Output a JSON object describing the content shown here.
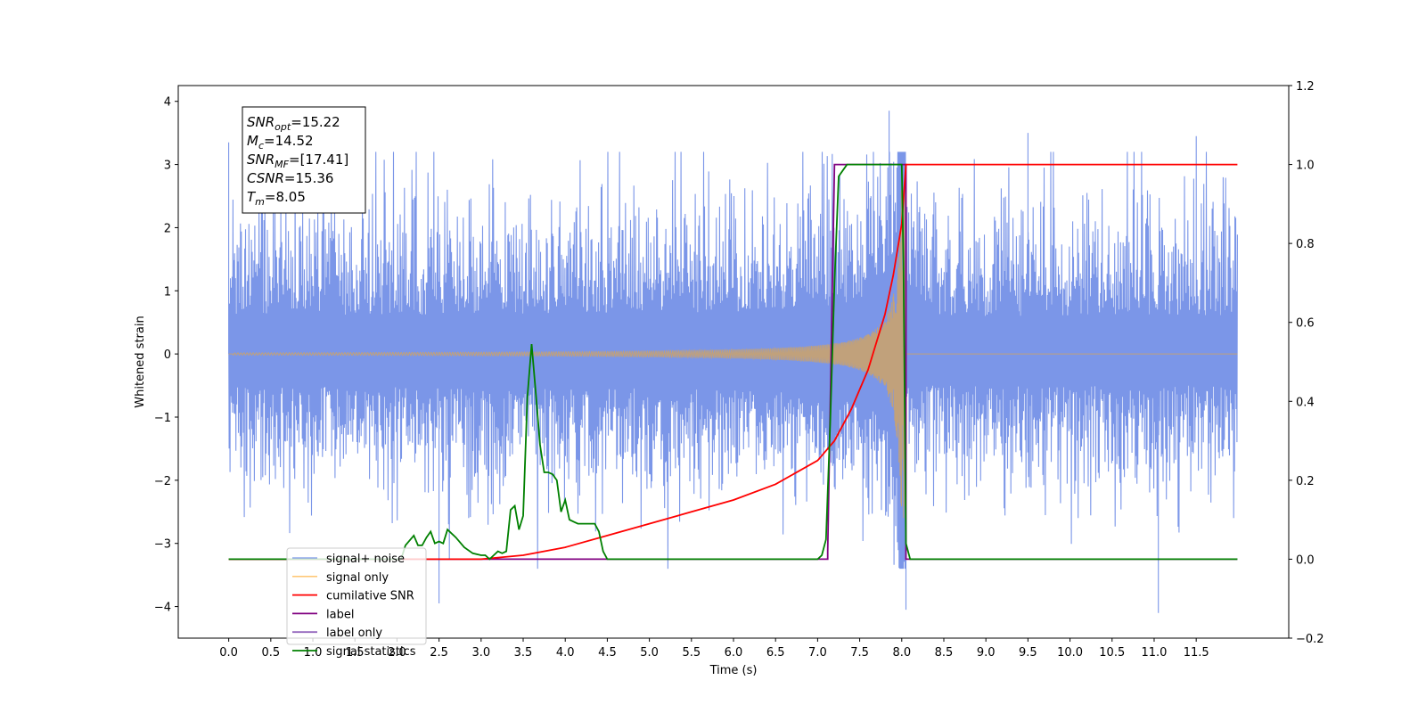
{
  "chart_data": {
    "type": "line",
    "xlabel": "Time (s)",
    "ylabel_left": "Whitened strain",
    "xlim": [
      -0.6,
      12.6
    ],
    "ylim_left": [
      -4.5,
      4.25
    ],
    "ylim_right": [
      -0.2,
      1.2
    ],
    "x_ticks": [
      0.0,
      0.5,
      1.0,
      1.5,
      2.0,
      2.5,
      3.0,
      3.5,
      4.0,
      4.5,
      5.0,
      5.5,
      6.0,
      6.5,
      7.0,
      7.5,
      8.0,
      8.5,
      9.0,
      9.5,
      10.0,
      10.5,
      11.0,
      11.5
    ],
    "x_tick_labels": [
      "0.0",
      "0.5",
      "1.0",
      "1.5",
      "2.0",
      "2.5",
      "3.0",
      "3.5",
      "4.0",
      "4.5",
      "5.0",
      "5.5",
      "6.0",
      "6.5",
      "7.0",
      "7.5",
      "8.0",
      "8.5",
      "9.0",
      "9.5",
      "10.0",
      "10.5",
      "11.0",
      "11.5"
    ],
    "y_left_ticks": [
      -4,
      -3,
      -2,
      -1,
      0,
      1,
      2,
      3,
      4
    ],
    "y_left_tick_labels": [
      "−4",
      "−3",
      "−2",
      "−1",
      "0",
      "1",
      "2",
      "3",
      "4"
    ],
    "y_right_ticks": [
      -0.2,
      0.0,
      0.2,
      0.4,
      0.6,
      0.8,
      1.0,
      1.2
    ],
    "y_right_tick_labels": [
      "−0.2",
      "0.0",
      "0.2",
      "0.4",
      "0.6",
      "0.8",
      "1.0",
      "1.2"
    ],
    "legend_position": "lower-left",
    "info_box": [
      {
        "main": "SNR",
        "sub": "opt",
        "value": "=15.22"
      },
      {
        "main": "M",
        "sub": "c",
        "value": "=14.52"
      },
      {
        "main": "SNR",
        "sub": "MF",
        "value": "=[17.41]"
      },
      {
        "main": "CSNR",
        "sub": "",
        "value": "=15.36"
      },
      {
        "main": "T",
        "sub": "m",
        "value": "=8.05"
      }
    ],
    "series": [
      {
        "name": "signal+ noise",
        "axis": "left",
        "color": "#7b96e8",
        "x_range": [
          0.0,
          11.99
        ],
        "envelope_hi": 2.0,
        "envelope_lo": -1.6,
        "peaks": [
          [
            0.0,
            3.35
          ],
          [
            2.5,
            -3.95
          ],
          [
            7.85,
            3.85
          ],
          [
            8.05,
            -4.05
          ],
          [
            11.05,
            -4.1
          ],
          [
            11.5,
            3.45
          ],
          [
            9.5,
            3.5
          ]
        ]
      },
      {
        "name": "signal only",
        "axis": "left",
        "color": "#c9a26f",
        "x_range": [
          0.0,
          11.99
        ],
        "merger_time": 8.05
      },
      {
        "name": "cumilative SNR",
        "axis": "right",
        "color": "#ff0000",
        "x": [
          0.0,
          3.0,
          3.5,
          4.0,
          4.5,
          5.0,
          5.5,
          6.0,
          6.5,
          7.0,
          7.2,
          7.4,
          7.6,
          7.8,
          7.9,
          8.0,
          8.05,
          11.99
        ],
        "y": [
          0.0,
          0.0,
          0.01,
          0.03,
          0.06,
          0.09,
          0.12,
          0.15,
          0.19,
          0.25,
          0.3,
          0.38,
          0.48,
          0.62,
          0.72,
          0.85,
          1.0,
          1.0
        ]
      },
      {
        "name": "label",
        "axis": "right",
        "color": "#800080",
        "x": [
          0.0,
          7.12,
          7.12,
          7.2,
          7.2,
          8.0,
          8.05,
          8.05,
          11.99
        ],
        "y": [
          0.0,
          0.0,
          0.02,
          1.0,
          1.0,
          1.0,
          1.0,
          0.0,
          0.0
        ]
      },
      {
        "name": "label only",
        "axis": "right",
        "color": "#9467bd"
      },
      {
        "name": "signal statistics",
        "axis": "right",
        "color": "#008000",
        "x": [
          0.0,
          2.05,
          2.1,
          2.2,
          2.25,
          2.3,
          2.35,
          2.4,
          2.45,
          2.5,
          2.55,
          2.6,
          2.7,
          2.8,
          2.9,
          3.0,
          3.05,
          3.1,
          3.15,
          3.2,
          3.25,
          3.3,
          3.35,
          3.4,
          3.45,
          3.5,
          3.55,
          3.6,
          3.65,
          3.7,
          3.75,
          3.8,
          3.85,
          3.9,
          3.95,
          4.0,
          4.05,
          4.1,
          4.15,
          4.2,
          4.25,
          4.3,
          4.35,
          4.4,
          4.45,
          4.5,
          7.0,
          7.05,
          7.1,
          7.15,
          7.2,
          7.25,
          7.3,
          7.35,
          7.4,
          7.6,
          8.0,
          8.02,
          8.05,
          8.1,
          11.99
        ],
        "y": [
          0.0,
          0.0,
          0.035,
          0.06,
          0.035,
          0.035,
          0.055,
          0.07,
          0.04,
          0.045,
          0.04,
          0.075,
          0.055,
          0.03,
          0.015,
          0.01,
          0.01,
          0.0,
          0.01,
          0.02,
          0.015,
          0.02,
          0.125,
          0.135,
          0.075,
          0.11,
          0.41,
          0.545,
          0.42,
          0.29,
          0.22,
          0.22,
          0.215,
          0.2,
          0.12,
          0.15,
          0.1,
          0.095,
          0.09,
          0.09,
          0.09,
          0.09,
          0.09,
          0.07,
          0.02,
          0.0,
          0.0,
          0.01,
          0.05,
          0.35,
          0.7,
          0.97,
          0.985,
          1.0,
          1.0,
          1.0,
          1.0,
          0.75,
          0.04,
          0.0,
          0.0
        ]
      }
    ]
  }
}
